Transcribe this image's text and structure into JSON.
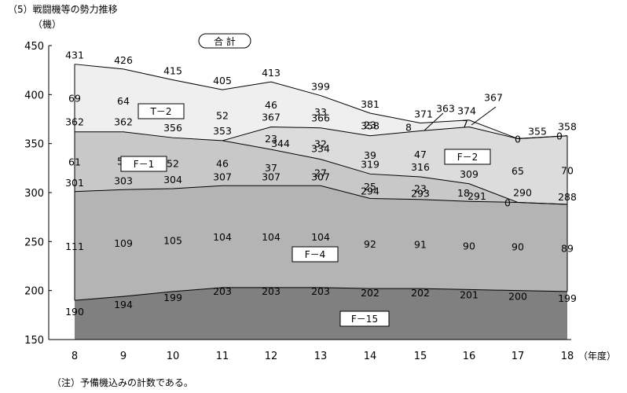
{
  "header": {
    "title": "（5）戦闘機等の勢力推移",
    "unit": "（機）"
  },
  "note": "（注）予備機込みの計数である。",
  "chart_data": {
    "type": "area",
    "x": [
      "8",
      "9",
      "10",
      "11",
      "12",
      "13",
      "14",
      "15",
      "16",
      "17",
      "18"
    ],
    "x_unit_label": "（年度）",
    "ylim": [
      150,
      450
    ],
    "y_ticks": [
      "150",
      "200",
      "250",
      "300",
      "350",
      "400",
      "450"
    ],
    "grid": false,
    "total_label": "合 計",
    "boundaries": {
      "total": [
        431,
        426,
        415,
        405,
        413,
        399,
        381,
        371,
        374,
        355,
        358
      ],
      "f2_top": [
        null,
        null,
        null,
        353,
        367,
        366,
        358,
        363,
        367,
        355,
        358
      ],
      "f1_top": [
        362,
        362,
        356,
        353,
        344,
        334,
        319,
        316,
        309,
        290,
        288
      ],
      "f4_top": [
        301,
        303,
        304,
        307,
        307,
        307,
        294,
        293,
        291,
        290,
        288
      ],
      "f15_top": [
        190,
        194,
        199,
        203,
        203,
        203,
        202,
        202,
        201,
        200,
        199
      ]
    },
    "series": [
      {
        "name": "F－15",
        "values": [
          190,
          194,
          199,
          203,
          203,
          203,
          202,
          202,
          201,
          200,
          199
        ],
        "color": "#808080"
      },
      {
        "name": "F－4",
        "values": [
          111,
          109,
          105,
          104,
          104,
          104,
          92,
          91,
          90,
          90,
          89
        ],
        "color": "#b4b4b4"
      },
      {
        "name": "F－1",
        "values": [
          61,
          59,
          52,
          46,
          37,
          27,
          25,
          23,
          18,
          0,
          null
        ],
        "color": "#c8c8c8"
      },
      {
        "name": "F－2",
        "values": [
          null,
          null,
          null,
          null,
          23,
          32,
          39,
          47,
          58,
          65,
          70
        ],
        "color": "#dcdcdc"
      },
      {
        "name": "T－2",
        "values": [
          69,
          64,
          59,
          52,
          46,
          33,
          23,
          8,
          7,
          0,
          0
        ],
        "color": "#efefef"
      }
    ],
    "point_labels": [
      {
        "x": "8",
        "y": 431,
        "text": "431",
        "dx": 0,
        "dy": -12
      },
      {
        "x": "9",
        "y": 426,
        "text": "426",
        "dx": 0,
        "dy": -12
      },
      {
        "x": "10",
        "y": 415,
        "text": "415",
        "dx": 0,
        "dy": -12
      },
      {
        "x": "11",
        "y": 405,
        "text": "405",
        "dx": 0,
        "dy": -12
      },
      {
        "x": "12",
        "y": 413,
        "text": "413",
        "dx": 0,
        "dy": -12
      },
      {
        "x": "13",
        "y": 399,
        "text": "399",
        "dx": 0,
        "dy": -12
      },
      {
        "x": "14",
        "y": 381,
        "text": "381",
        "dx": 0,
        "dy": -12
      },
      {
        "x": "15",
        "y": 371,
        "text": "371",
        "dx": 4,
        "dy": -12
      },
      {
        "x": "16",
        "y": 363,
        "text": "363",
        "dx": -30,
        "dy": -29
      },
      {
        "x": "16",
        "y": 374,
        "text": "374",
        "dx": -3,
        "dy": -12
      },
      {
        "x": "17",
        "y": 367,
        "text": "367",
        "dx": -31,
        "dy": -38
      },
      {
        "x": "17",
        "y": 355,
        "text": "355",
        "dx": 25,
        "dy": -10
      },
      {
        "x": "18",
        "y": 358,
        "text": "358",
        "dx": 0,
        "dy": -12
      },
      {
        "x": "8",
        "y": 362,
        "text": "362",
        "dx": 0,
        "dy": -13
      },
      {
        "x": "9",
        "y": 362,
        "text": "362",
        "dx": 0,
        "dy": -13
      },
      {
        "x": "10",
        "y": 356,
        "text": "356",
        "dx": 0,
        "dy": -13
      },
      {
        "x": "11",
        "y": 353,
        "text": "353",
        "dx": 0,
        "dy": -13
      },
      {
        "x": "12",
        "y": 367,
        "text": "367",
        "dx": 0,
        "dy": -13
      },
      {
        "x": "12",
        "y": 344,
        "text": "344",
        "dx": 12,
        "dy": -8
      },
      {
        "x": "13",
        "y": 366,
        "text": "366",
        "dx": 0,
        "dy": -13
      },
      {
        "x": "13",
        "y": 334,
        "text": "334",
        "dx": 0,
        "dy": -14
      },
      {
        "x": "14",
        "y": 358,
        "text": "358",
        "dx": 0,
        "dy": -13
      },
      {
        "x": "14",
        "y": 319,
        "text": "319",
        "dx": 0,
        "dy": -13
      },
      {
        "x": "15",
        "y": 316,
        "text": "316",
        "dx": 0,
        "dy": -13
      },
      {
        "x": "16",
        "y": 309,
        "text": "309",
        "dx": 0,
        "dy": -13
      },
      {
        "x": "17",
        "y": 290,
        "text": "290",
        "dx": 6,
        "dy": -13
      },
      {
        "x": "8",
        "y": 301,
        "text": "301",
        "dx": 0,
        "dy": -12
      },
      {
        "x": "9",
        "y": 303,
        "text": "303",
        "dx": 0,
        "dy": -12
      },
      {
        "x": "10",
        "y": 304,
        "text": "304",
        "dx": 0,
        "dy": -12
      },
      {
        "x": "11",
        "y": 307,
        "text": "307",
        "dx": 0,
        "dy": -12
      },
      {
        "x": "12",
        "y": 307,
        "text": "307",
        "dx": 0,
        "dy": -12
      },
      {
        "x": "13",
        "y": 307,
        "text": "307",
        "dx": 0,
        "dy": -12
      },
      {
        "x": "14",
        "y": 294,
        "text": "294",
        "dx": 0,
        "dy": -10
      },
      {
        "x": "15",
        "y": 293,
        "text": "293",
        "dx": 0,
        "dy": -8
      },
      {
        "x": "16",
        "y": 291,
        "text": "291",
        "dx": 10,
        "dy": -7
      },
      {
        "x": "18",
        "y": 288,
        "text": "288",
        "dx": 0,
        "dy": -10
      },
      {
        "x": "8",
        "y": 190,
        "text": "190",
        "dx": 0,
        "dy": 14
      },
      {
        "x": "9",
        "y": 194,
        "text": "194",
        "dx": 0,
        "dy": 10
      },
      {
        "x": "10",
        "y": 199,
        "text": "199",
        "dx": 0,
        "dy": 7
      },
      {
        "x": "11",
        "y": 203,
        "text": "203",
        "dx": 0,
        "dy": 4
      },
      {
        "x": "12",
        "y": 203,
        "text": "203",
        "dx": 0,
        "dy": 4
      },
      {
        "x": "13",
        "y": 203,
        "text": "203",
        "dx": 0,
        "dy": 4
      },
      {
        "x": "14",
        "y": 202,
        "text": "202",
        "dx": 0,
        "dy": 5
      },
      {
        "x": "15",
        "y": 202,
        "text": "202",
        "dx": 0,
        "dy": 5
      },
      {
        "x": "16",
        "y": 201,
        "text": "201",
        "dx": 0,
        "dy": 6
      },
      {
        "x": "17",
        "y": 200,
        "text": "200",
        "dx": 0,
        "dy": 7
      },
      {
        "x": "18",
        "y": 199,
        "text": "199",
        "dx": 0,
        "dy": 8
      },
      {
        "x": "8",
        "y": 69,
        "text": "69",
        "dx": 0,
        "dy": 0,
        "place": "t2"
      },
      {
        "x": "9",
        "y": 64,
        "text": "64",
        "dx": 0,
        "dy": 0,
        "place": "t2"
      },
      {
        "x": "10",
        "y": 59,
        "text": "59",
        "dx": 0,
        "dy": 0,
        "place": "t2"
      },
      {
        "x": "11",
        "y": 52,
        "text": "52",
        "dx": 0,
        "dy": 0,
        "place": "t2"
      },
      {
        "x": "12",
        "y": 46,
        "text": "46",
        "dx": 0,
        "dy": 0,
        "place": "t2"
      },
      {
        "x": "13",
        "y": 33,
        "text": "33",
        "dx": 0,
        "dy": 0,
        "place": "t2"
      },
      {
        "x": "14",
        "y": 23,
        "text": "23",
        "dx": 0,
        "dy": 0,
        "place": "t2"
      },
      {
        "x": "15",
        "y": 8,
        "text": "8",
        "dx": -15,
        "dy": 0,
        "place": "t2"
      },
      {
        "x": "16",
        "y": 7,
        "text": "7",
        "dx": -5,
        "dy": 0,
        "place": "t2"
      },
      {
        "x": "17",
        "y": 0,
        "text": "0",
        "dx": 0,
        "dy": 0,
        "place": "t2"
      },
      {
        "x": "18",
        "y": 0,
        "text": "0",
        "dx": -10,
        "dy": 0,
        "place": "t2"
      },
      {
        "x": "12",
        "y": 23,
        "text": "23",
        "dx": 0,
        "dy": 0,
        "place": "f2"
      },
      {
        "x": "13",
        "y": 32,
        "text": "32",
        "dx": 0,
        "dy": 0,
        "place": "f2"
      },
      {
        "x": "14",
        "y": 39,
        "text": "39",
        "dx": 0,
        "dy": 0,
        "place": "f2"
      },
      {
        "x": "15",
        "y": 47,
        "text": "47",
        "dx": 0,
        "dy": 0,
        "place": "f2"
      },
      {
        "x": "16",
        "y": 58,
        "text": "58",
        "dx": 0,
        "dy": 0,
        "place": "f2"
      },
      {
        "x": "17",
        "y": 65,
        "text": "65",
        "dx": 0,
        "dy": 0,
        "place": "f2"
      },
      {
        "x": "18",
        "y": 70,
        "text": "70",
        "dx": 0,
        "dy": 0,
        "place": "f2"
      },
      {
        "x": "8",
        "y": 61,
        "text": "61",
        "dx": 0,
        "dy": 0,
        "place": "f1"
      },
      {
        "x": "9",
        "y": 59,
        "text": "59",
        "dx": 0,
        "dy": 0,
        "place": "f1"
      },
      {
        "x": "10",
        "y": 52,
        "text": "52",
        "dx": 0,
        "dy": 0,
        "place": "f1"
      },
      {
        "x": "11",
        "y": 46,
        "text": "46",
        "dx": 0,
        "dy": 0,
        "place": "f1"
      },
      {
        "x": "12",
        "y": 37,
        "text": "37",
        "dx": 0,
        "dy": 0,
        "place": "f1"
      },
      {
        "x": "13",
        "y": 27,
        "text": "27",
        "dx": 0,
        "dy": 0,
        "place": "f1"
      },
      {
        "x": "14",
        "y": 25,
        "text": "25",
        "dx": 0,
        "dy": 0,
        "place": "f1"
      },
      {
        "x": "15",
        "y": 23,
        "text": "23",
        "dx": 0,
        "dy": 0,
        "place": "f1"
      },
      {
        "x": "16",
        "y": 18,
        "text": "18",
        "dx": -7,
        "dy": 0,
        "place": "f1"
      },
      {
        "x": "17",
        "y": 0,
        "text": "0",
        "dx": -13,
        "dy": 0,
        "place": "f1"
      },
      {
        "x": "8",
        "y": 111,
        "text": "111",
        "dx": 0,
        "dy": 0,
        "place": "f4"
      },
      {
        "x": "9",
        "y": 109,
        "text": "109",
        "dx": 0,
        "dy": 0,
        "place": "f4"
      },
      {
        "x": "10",
        "y": 105,
        "text": "105",
        "dx": 0,
        "dy": 0,
        "place": "f4"
      },
      {
        "x": "11",
        "y": 104,
        "text": "104",
        "dx": 0,
        "dy": 0,
        "place": "f4"
      },
      {
        "x": "12",
        "y": 104,
        "text": "104",
        "dx": 0,
        "dy": 0,
        "place": "f4"
      },
      {
        "x": "13",
        "y": 104,
        "text": "104",
        "dx": 0,
        "dy": 0,
        "place": "f4"
      },
      {
        "x": "14",
        "y": 92,
        "text": "92",
        "dx": 0,
        "dy": 0,
        "place": "f4"
      },
      {
        "x": "15",
        "y": 91,
        "text": "91",
        "dx": 0,
        "dy": 0,
        "place": "f4"
      },
      {
        "x": "16",
        "y": 90,
        "text": "90",
        "dx": 0,
        "dy": 0,
        "place": "f4"
      },
      {
        "x": "17",
        "y": 90,
        "text": "90",
        "dx": 0,
        "dy": 0,
        "place": "f4"
      },
      {
        "x": "18",
        "y": 89,
        "text": "89",
        "dx": 0,
        "dy": 0,
        "place": "f4"
      }
    ]
  }
}
